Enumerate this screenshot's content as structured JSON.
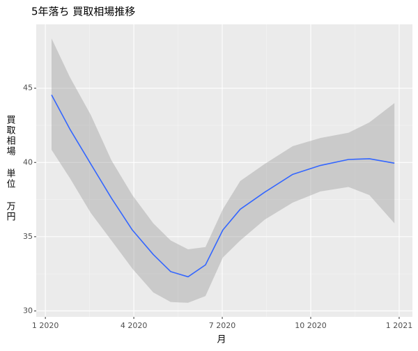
{
  "chart_data": {
    "type": "smooth",
    "title": "5年落ち 買取相場推移",
    "xlabel": "月",
    "ylabel": "買取相場 単位 万円",
    "x": [
      0.21,
      0.83,
      1.54,
      2.24,
      2.95,
      3.66,
      4.25,
      4.84,
      5.43,
      6.02,
      6.61,
      7.44,
      8.39,
      9.33,
      10.28,
      10.99,
      11.84
    ],
    "values": [
      44.55,
      42.25,
      39.9,
      37.6,
      35.45,
      33.8,
      32.65,
      32.3,
      33.1,
      35.45,
      36.85,
      38.0,
      39.2,
      39.8,
      40.2,
      40.25,
      39.95
    ],
    "upper": [
      48.35,
      45.75,
      43.2,
      40.15,
      37.8,
      35.9,
      34.75,
      34.15,
      34.3,
      36.85,
      38.75,
      39.9,
      41.1,
      41.65,
      42.0,
      42.7,
      44.0
    ],
    "lower": [
      40.85,
      38.95,
      36.6,
      34.75,
      32.85,
      31.25,
      30.6,
      30.55,
      31.0,
      33.6,
      34.75,
      36.15,
      37.3,
      38.05,
      38.35,
      37.8,
      35.9
    ],
    "color": "#3366ff",
    "band_color": "#999999",
    "xlim": [
      -0.31,
      12.45
    ],
    "ylim": [
      29.6,
      49.3
    ],
    "xticks": [
      {
        "value": 0,
        "label": "1 2020"
      },
      {
        "value": 3,
        "label": "4 2020"
      },
      {
        "value": 6,
        "label": "7 2020"
      },
      {
        "value": 9,
        "label": "10 2020"
      },
      {
        "value": 12,
        "label": "1 2021"
      }
    ],
    "yticks": [
      30,
      35,
      40,
      45
    ],
    "grid": true
  }
}
